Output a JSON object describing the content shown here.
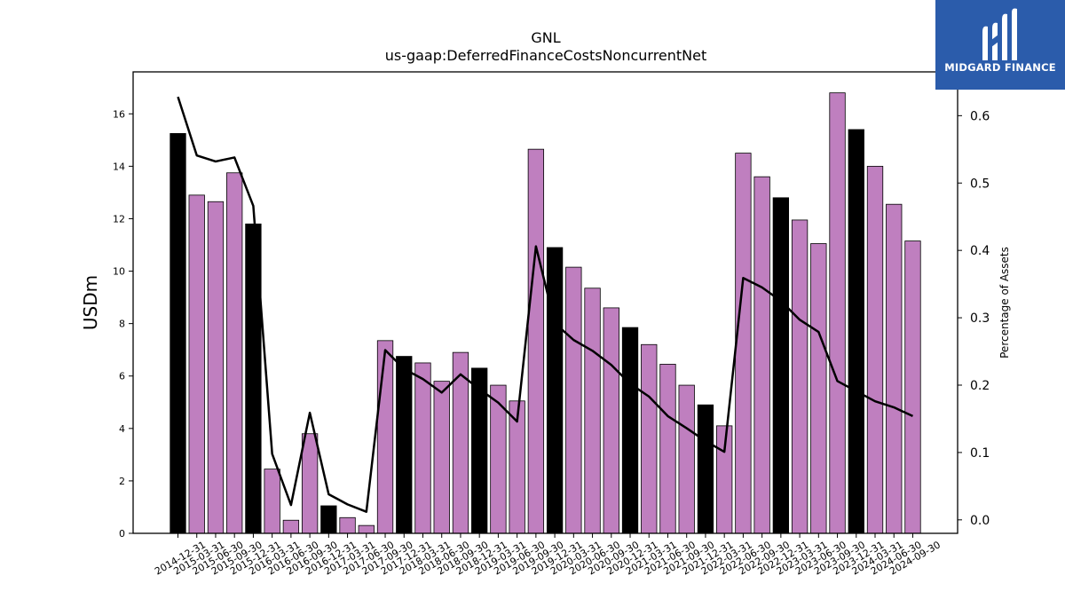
{
  "brand": {
    "name": "MIDGARD FINANCE",
    "logo_icon": "midgard-logo-icon",
    "background_color": "#2b5cab"
  },
  "chart_data": {
    "type": "bar",
    "title": "GNL",
    "subtitle": "us-gaap:DeferredFinanceCostsNoncurrentNet",
    "ylabel": "USDm",
    "y2label": "Percentage of Assets",
    "ylim": [
      0,
      17.6
    ],
    "y2lim": [
      -0.02,
      0.665
    ],
    "yticks": [
      0,
      2,
      4,
      6,
      8,
      10,
      12,
      14,
      16
    ],
    "y2ticks": [
      0.0,
      0.1,
      0.2,
      0.3,
      0.4,
      0.5,
      0.6
    ],
    "colors": {
      "quarter_bar": "#bf7fbf",
      "year_end_bar": "#000000",
      "line": "#000000"
    },
    "categories": [
      "2014-12-31",
      "2015-03-31",
      "2015-06-30",
      "2015-09-30",
      "2015-12-31",
      "2016-03-31",
      "2016-06-30",
      "2016-09-30",
      "2016-12-31",
      "2017-03-31",
      "2017-06-30",
      "2017-09-30",
      "2017-12-31",
      "2018-03-31",
      "2018-06-30",
      "2018-09-30",
      "2018-12-31",
      "2019-03-31",
      "2019-06-30",
      "2019-09-30",
      "2019-12-31",
      "2020-03-31",
      "2020-06-30",
      "2020-09-30",
      "2020-12-31",
      "2021-03-31",
      "2021-06-30",
      "2021-09-30",
      "2021-12-31",
      "2022-03-31",
      "2022-06-30",
      "2022-09-30",
      "2022-12-31",
      "2023-03-31",
      "2023-06-30",
      "2023-09-30",
      "2023-12-31",
      "2024-03-31",
      "2024-06-30",
      "2024-09-30"
    ],
    "series": [
      {
        "kind": "bar",
        "axis": "left",
        "values": [
          15.25,
          12.9,
          12.65,
          13.75,
          11.8,
          2.45,
          0.5,
          3.8,
          1.05,
          0.6,
          0.3,
          7.35,
          6.75,
          6.5,
          5.8,
          6.9,
          6.3,
          5.65,
          5.05,
          14.65,
          10.9,
          10.15,
          9.35,
          8.6,
          7.85,
          7.2,
          6.45,
          5.65,
          4.9,
          4.1,
          14.5,
          13.6,
          12.8,
          11.95,
          11.05,
          16.8,
          15.4,
          14.0,
          12.55,
          11.15
        ]
      },
      {
        "kind": "line",
        "axis": "right",
        "values": [
          0.628,
          0.541,
          0.532,
          0.538,
          0.466,
          0.098,
          0.022,
          0.159,
          0.038,
          0.023,
          0.012,
          0.252,
          0.224,
          0.209,
          0.189,
          0.216,
          0.194,
          0.174,
          0.146,
          0.406,
          0.292,
          0.267,
          0.251,
          0.23,
          0.202,
          0.183,
          0.154,
          0.136,
          0.117,
          0.101,
          0.359,
          0.345,
          0.325,
          0.297,
          0.279,
          0.206,
          0.191,
          0.176,
          0.167,
          0.154
        ]
      }
    ],
    "legend": "none",
    "grid": false
  }
}
